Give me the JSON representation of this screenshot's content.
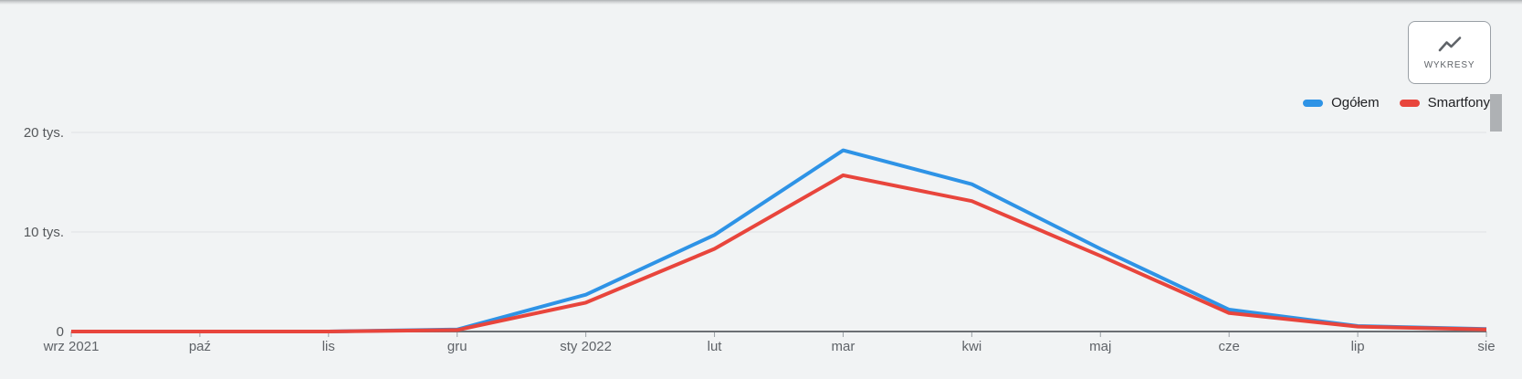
{
  "page": {
    "background": "#f1f3f4"
  },
  "toolbar": {
    "charts_button": {
      "label": "WYKRESY",
      "icon": "line-chart-icon"
    }
  },
  "legend": {
    "items": [
      {
        "label": "Ogółem",
        "color": "#2e93e6"
      },
      {
        "label": "Smartfony",
        "color": "#e8453c"
      }
    ]
  },
  "chart_data": {
    "type": "line",
    "x": [
      "wrz 2021",
      "paź",
      "lis",
      "gru",
      "sty 2022",
      "lut",
      "mar",
      "kwi",
      "maj",
      "cze",
      "lip",
      "sie"
    ],
    "series": [
      {
        "name": "Ogółem",
        "color": "#2e93e6",
        "values": [
          0,
          0,
          0,
          200,
          3700,
          9700,
          18200,
          14800,
          8300,
          2200,
          550,
          250
        ]
      },
      {
        "name": "Smartfony",
        "color": "#e8453c",
        "values": [
          0,
          0,
          0,
          150,
          2900,
          8300,
          15700,
          13100,
          7600,
          1850,
          500,
          200
        ]
      }
    ],
    "ylim": [
      0,
      20000
    ],
    "yticks": [
      {
        "value": 0,
        "label": "0"
      },
      {
        "value": 10000,
        "label": "10 tys."
      },
      {
        "value": 20000,
        "label": "20 tys."
      }
    ],
    "grid": "horizontal",
    "legend_position": "top-right",
    "axis_color": "#6b6f73",
    "gridline_color": "#e0e2e4",
    "tick_color": "#9aa0a6"
  }
}
